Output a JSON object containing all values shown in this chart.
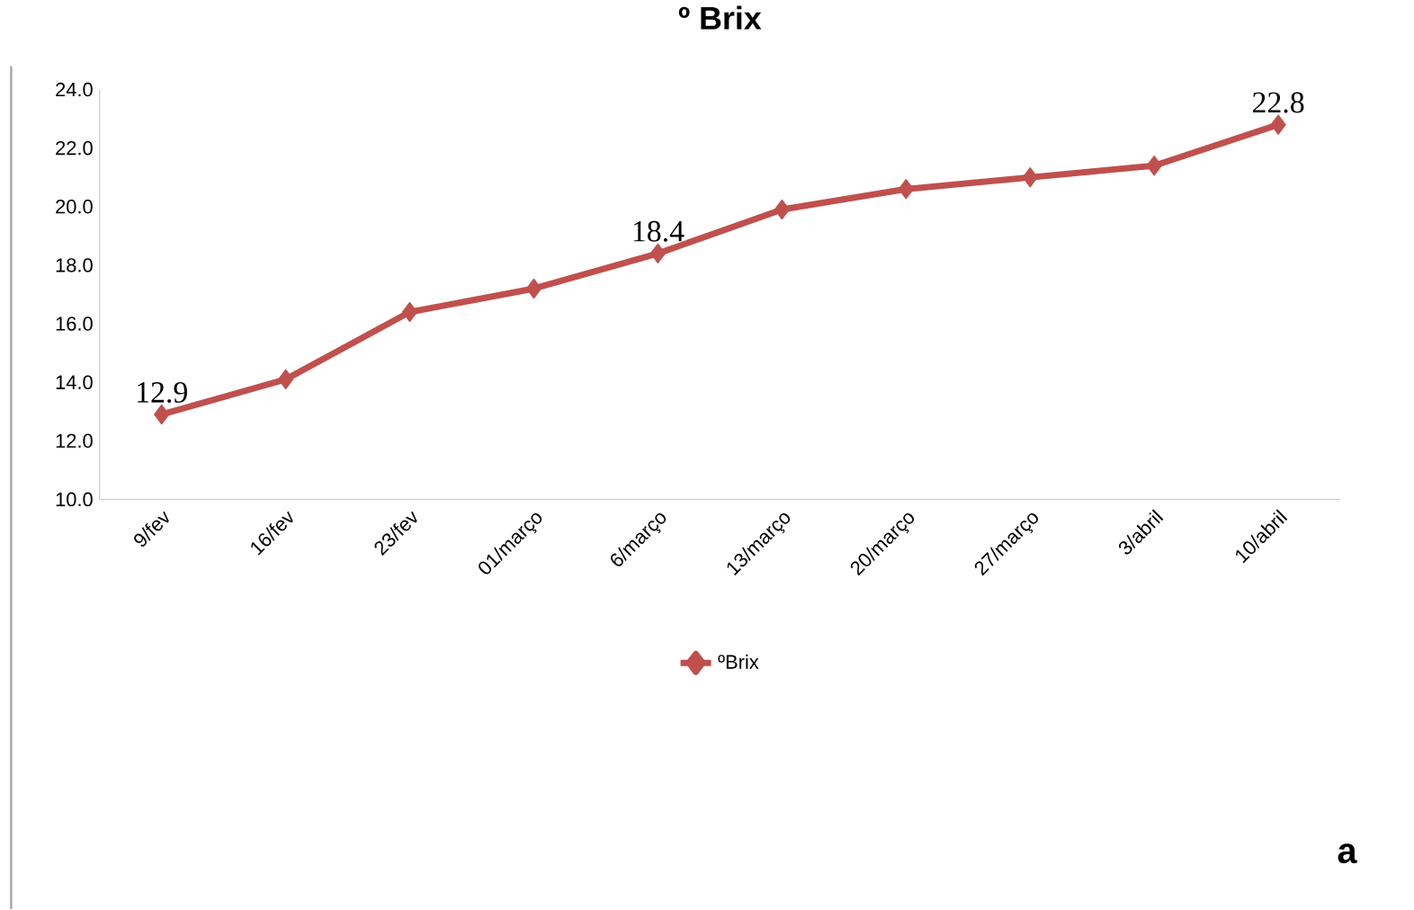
{
  "chart_data": {
    "type": "line",
    "title": "º Brix",
    "categories": [
      "9/fev",
      "16/fev",
      "23/fev",
      "01/março",
      "6/março",
      "13/março",
      "20/março",
      "27/março",
      "3/abril",
      "10/abril"
    ],
    "series": [
      {
        "name": "ºBrix",
        "color": "#c0504d",
        "values": [
          12.9,
          14.1,
          16.4,
          17.2,
          18.4,
          19.9,
          20.6,
          21.0,
          21.4,
          22.8
        ],
        "value_labels": [
          "12.9",
          null,
          null,
          null,
          "18.4",
          null,
          null,
          null,
          null,
          "22.8"
        ]
      }
    ],
    "ylim": [
      10,
      24
    ],
    "yticks": [
      {
        "value": 10,
        "label": "10.0"
      },
      {
        "value": 12,
        "label": "12.0"
      },
      {
        "value": 14,
        "label": "14.0"
      },
      {
        "value": 16,
        "label": "16.0"
      },
      {
        "value": 18,
        "label": "18.0"
      },
      {
        "value": 20,
        "label": "20.0"
      },
      {
        "value": 22,
        "label": "22.0"
      },
      {
        "value": 24,
        "label": "24.0"
      }
    ],
    "legend": "bottom",
    "marker": "diamond",
    "annotations": [
      "a"
    ]
  }
}
